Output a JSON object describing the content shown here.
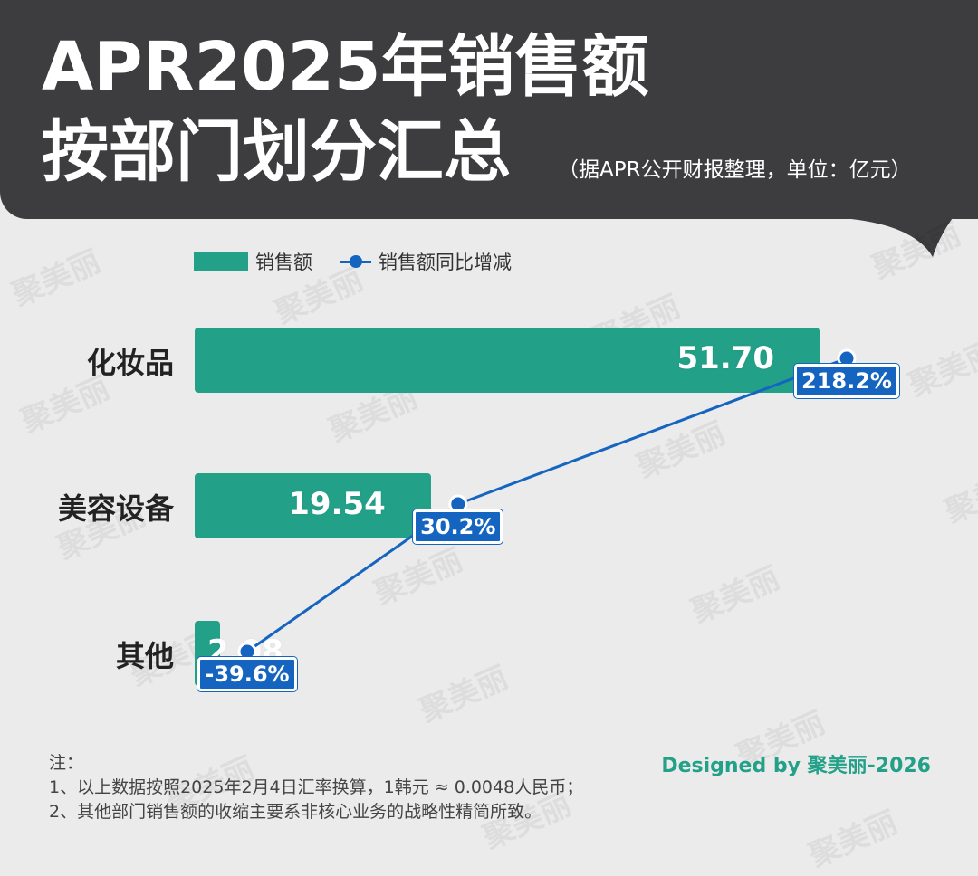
{
  "header": {
    "title_line1": "APR2025年销售额",
    "title_line2": "按部门划分汇总",
    "subtitle": "（据APR公开财报整理，单位：亿元）"
  },
  "watermark_text": "聚美丽",
  "chart_data": {
    "type": "bar",
    "orientation": "horizontal",
    "categories": [
      "化妆品",
      "美容设备",
      "其他"
    ],
    "series": [
      {
        "name": "销售额",
        "type": "bar",
        "color": "#22a088",
        "values": [
          51.7,
          19.54,
          2.08
        ],
        "labels": [
          "51.70",
          "19.54",
          "2.08"
        ]
      },
      {
        "name": "销售额同比增减",
        "type": "line",
        "color": "#1565c0",
        "values": [
          218.2,
          30.2,
          -39.6
        ],
        "labels": [
          "218.2%",
          "30.2%",
          "-39.6%"
        ]
      }
    ],
    "legend_position": "top-left",
    "grid": false
  },
  "notes": {
    "heading": "注：",
    "line1": "1、以上数据按照2025年2月4日汇率换算，1韩元 ≈ 0.0048人民币；",
    "line2": "2、其他部门销售额的收缩主要系非核心业务的战略性精简所致。"
  },
  "credit": "Designed by 聚美丽-2026"
}
